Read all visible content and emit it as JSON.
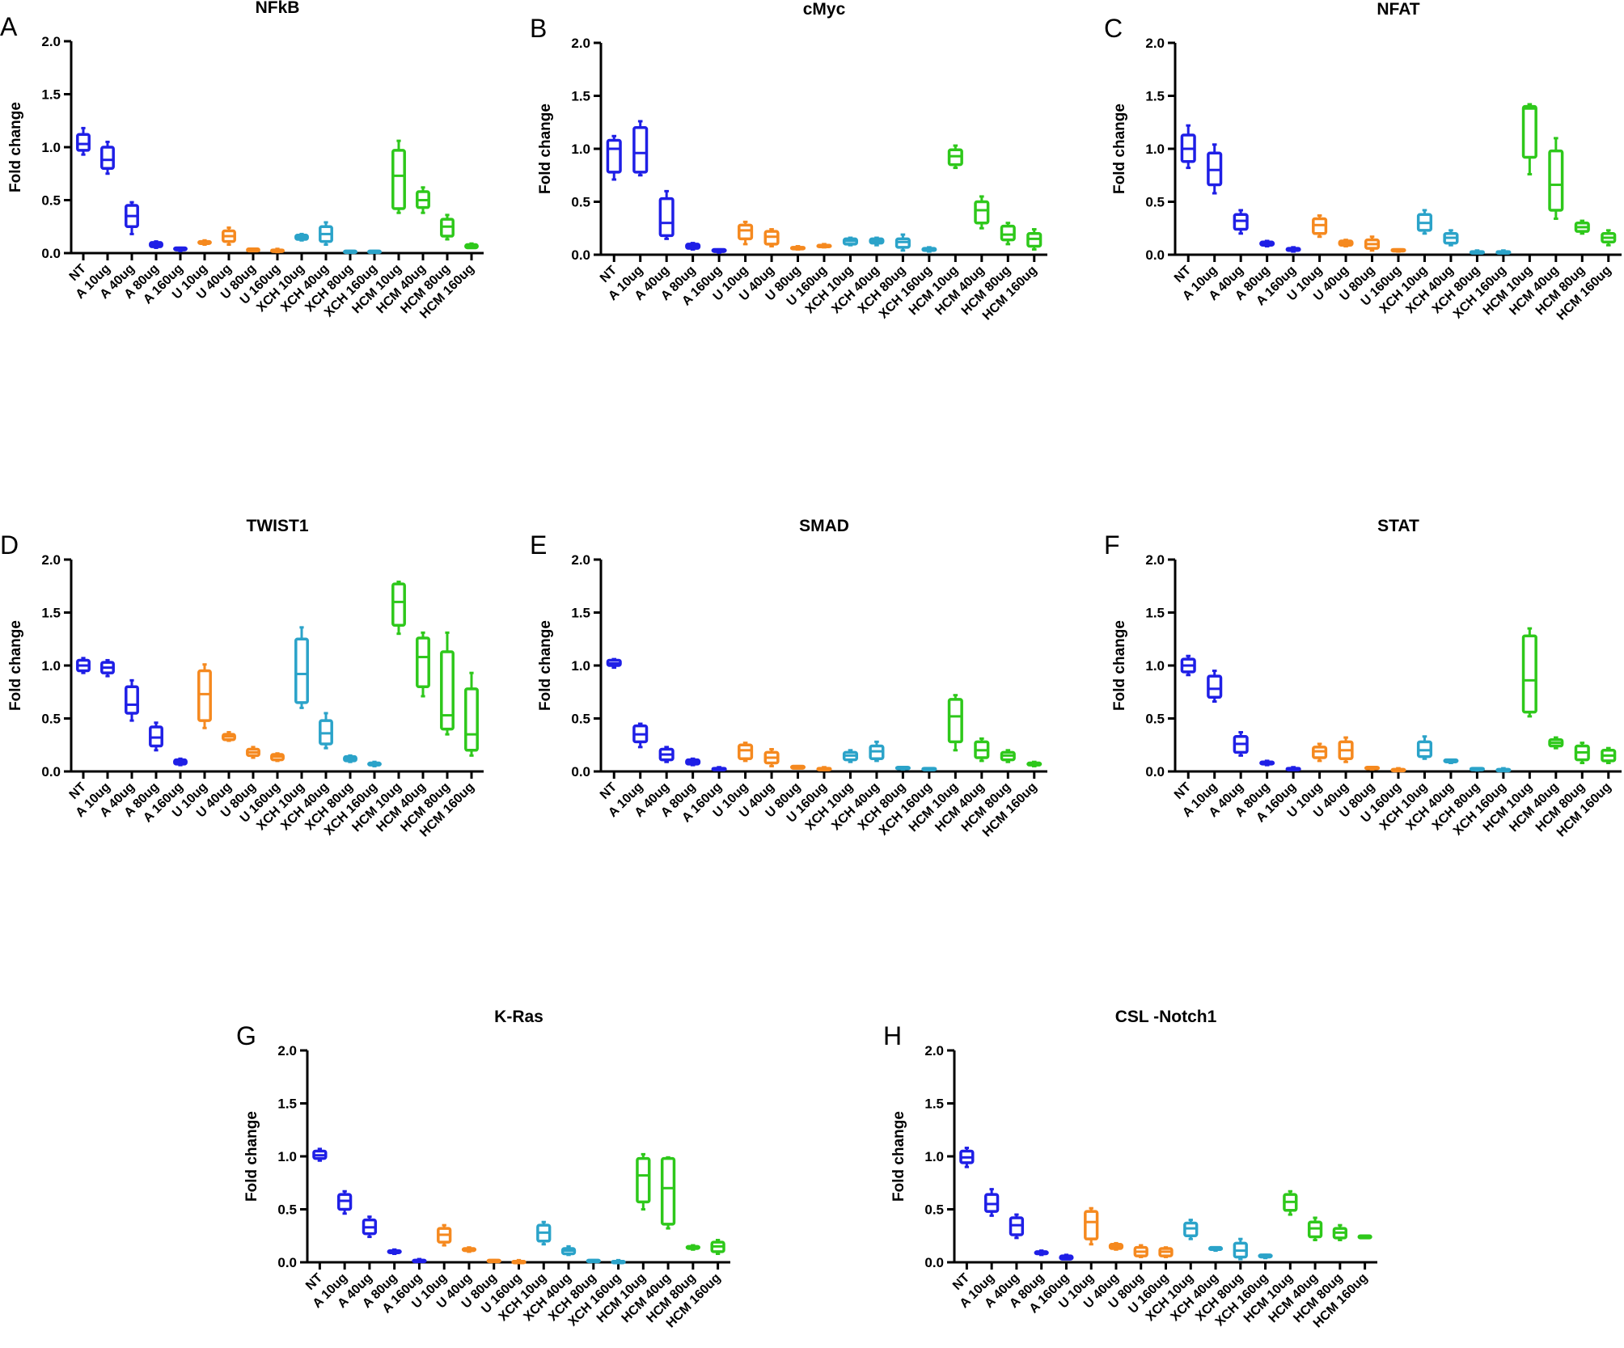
{
  "colors": {
    "A": "#1f1fe6",
    "U": "#f5891f",
    "XCH": "#2ba3c9",
    "HCM": "#2ec81b",
    "NT": "#1f1fe6"
  },
  "categories": [
    "NT",
    "A 10ug",
    "A 40ug",
    "A 80ug",
    "A 160ug",
    "U 10ug",
    "U 40ug",
    "U 80ug",
    "U 160ug",
    "XCH 10ug",
    "XCH 40ug",
    "XCH 80ug",
    "XCH 160ug",
    "HCM 10ug",
    "HCM 40ug",
    "HCM 80ug",
    "HCM 160ug"
  ],
  "groups": [
    "NT",
    "A",
    "A",
    "A",
    "A",
    "U",
    "U",
    "U",
    "U",
    "XCH",
    "XCH",
    "XCH",
    "XCH",
    "HCM",
    "HCM",
    "HCM",
    "HCM"
  ],
  "chart_data": [
    {
      "panel": "A",
      "type": "box",
      "title": "NFkB",
      "ylabel": "Fold change",
      "ylim": [
        0,
        2.0
      ],
      "yticks": [
        "0.0",
        "0.5",
        "1.0",
        "1.5",
        "2.0"
      ],
      "boxes": [
        [
          0.93,
          0.97,
          1.03,
          1.12,
          1.18
        ],
        [
          0.75,
          0.8,
          0.88,
          1.0,
          1.05
        ],
        [
          0.18,
          0.25,
          0.35,
          0.45,
          0.48
        ],
        [
          0.05,
          0.06,
          0.08,
          0.1,
          0.11
        ],
        [
          0.02,
          0.03,
          0.04,
          0.05,
          0.05
        ],
        [
          0.08,
          0.09,
          0.1,
          0.11,
          0.12
        ],
        [
          0.08,
          0.11,
          0.16,
          0.21,
          0.24
        ],
        [
          0.02,
          0.02,
          0.03,
          0.04,
          0.04
        ],
        [
          0.01,
          0.02,
          0.03,
          0.03,
          0.04
        ],
        [
          0.12,
          0.13,
          0.15,
          0.17,
          0.18
        ],
        [
          0.08,
          0.11,
          0.18,
          0.25,
          0.29
        ],
        [
          0.01,
          0.01,
          0.02,
          0.02,
          0.02
        ],
        [
          0.01,
          0.01,
          0.02,
          0.02,
          0.02
        ],
        [
          0.38,
          0.42,
          0.73,
          0.97,
          1.06
        ],
        [
          0.38,
          0.43,
          0.5,
          0.58,
          0.62
        ],
        [
          0.13,
          0.16,
          0.25,
          0.32,
          0.36
        ],
        [
          0.05,
          0.05,
          0.07,
          0.08,
          0.09
        ]
      ]
    },
    {
      "panel": "B",
      "type": "box",
      "title": "cMyc",
      "ylabel": "Fold change",
      "ylim": [
        0,
        2.0
      ],
      "yticks": [
        "0.0",
        "0.5",
        "1.0",
        "1.5",
        "2.0"
      ],
      "boxes": [
        [
          0.71,
          0.78,
          1.0,
          1.08,
          1.12
        ],
        [
          0.75,
          0.78,
          0.96,
          1.2,
          1.26
        ],
        [
          0.15,
          0.18,
          0.3,
          0.53,
          0.6
        ],
        [
          0.05,
          0.06,
          0.08,
          0.1,
          0.11
        ],
        [
          0.02,
          0.03,
          0.04,
          0.05,
          0.05
        ],
        [
          0.1,
          0.15,
          0.23,
          0.28,
          0.31
        ],
        [
          0.08,
          0.1,
          0.17,
          0.22,
          0.24
        ],
        [
          0.05,
          0.06,
          0.07,
          0.07,
          0.08
        ],
        [
          0.07,
          0.08,
          0.09,
          0.09,
          0.1
        ],
        [
          0.09,
          0.1,
          0.13,
          0.15,
          0.16
        ],
        [
          0.09,
          0.11,
          0.13,
          0.15,
          0.16
        ],
        [
          0.04,
          0.07,
          0.12,
          0.15,
          0.19
        ],
        [
          0.03,
          0.04,
          0.05,
          0.06,
          0.07
        ],
        [
          0.82,
          0.85,
          0.93,
          0.99,
          1.03
        ],
        [
          0.25,
          0.3,
          0.42,
          0.5,
          0.55
        ],
        [
          0.1,
          0.14,
          0.19,
          0.27,
          0.3
        ],
        [
          0.05,
          0.08,
          0.15,
          0.2,
          0.24
        ]
      ]
    },
    {
      "panel": "C",
      "type": "box",
      "title": "NFAT",
      "ylabel": "Fold change",
      "ylim": [
        0,
        2.0
      ],
      "yticks": [
        "0.0",
        "0.5",
        "1.0",
        "1.5",
        "2.0"
      ],
      "boxes": [
        [
          0.82,
          0.88,
          1.0,
          1.13,
          1.22
        ],
        [
          0.58,
          0.66,
          0.8,
          0.96,
          1.04
        ],
        [
          0.2,
          0.24,
          0.32,
          0.38,
          0.42
        ],
        [
          0.08,
          0.09,
          0.11,
          0.12,
          0.13
        ],
        [
          0.03,
          0.04,
          0.05,
          0.06,
          0.07
        ],
        [
          0.17,
          0.2,
          0.28,
          0.34,
          0.37
        ],
        [
          0.08,
          0.09,
          0.11,
          0.13,
          0.14
        ],
        [
          0.04,
          0.06,
          0.1,
          0.14,
          0.17
        ],
        [
          0.03,
          0.04,
          0.04,
          0.05,
          0.05
        ],
        [
          0.2,
          0.23,
          0.3,
          0.38,
          0.42
        ],
        [
          0.09,
          0.11,
          0.16,
          0.2,
          0.23
        ],
        [
          0.02,
          0.02,
          0.03,
          0.03,
          0.04
        ],
        [
          0.02,
          0.02,
          0.03,
          0.03,
          0.04
        ],
        [
          0.76,
          0.92,
          1.38,
          1.4,
          1.42
        ],
        [
          0.34,
          0.42,
          0.66,
          0.98,
          1.1
        ],
        [
          0.2,
          0.22,
          0.26,
          0.3,
          0.32
        ],
        [
          0.09,
          0.12,
          0.16,
          0.2,
          0.23
        ]
      ]
    },
    {
      "panel": "D",
      "type": "box",
      "title": "TWIST1",
      "ylabel": "Fold change",
      "ylim": [
        0,
        2.0
      ],
      "yticks": [
        "0.0",
        "0.5",
        "1.0",
        "1.5",
        "2.0"
      ],
      "boxes": [
        [
          0.93,
          0.95,
          1.0,
          1.05,
          1.07
        ],
        [
          0.9,
          0.93,
          0.98,
          1.03,
          1.05
        ],
        [
          0.48,
          0.55,
          0.63,
          0.8,
          0.86
        ],
        [
          0.2,
          0.24,
          0.32,
          0.42,
          0.46
        ],
        [
          0.06,
          0.07,
          0.09,
          0.11,
          0.12
        ],
        [
          0.41,
          0.48,
          0.73,
          0.95,
          1.01
        ],
        [
          0.29,
          0.3,
          0.33,
          0.35,
          0.37
        ],
        [
          0.13,
          0.15,
          0.18,
          0.21,
          0.23
        ],
        [
          0.1,
          0.11,
          0.14,
          0.16,
          0.17
        ],
        [
          0.6,
          0.65,
          0.92,
          1.25,
          1.36
        ],
        [
          0.22,
          0.26,
          0.36,
          0.48,
          0.55
        ],
        [
          0.09,
          0.1,
          0.12,
          0.14,
          0.15
        ],
        [
          0.05,
          0.06,
          0.07,
          0.08,
          0.09
        ],
        [
          1.3,
          1.38,
          1.6,
          1.77,
          1.79
        ],
        [
          0.71,
          0.8,
          1.08,
          1.26,
          1.31
        ],
        [
          0.35,
          0.4,
          0.53,
          1.13,
          1.31
        ],
        [
          0.15,
          0.2,
          0.35,
          0.78,
          0.93
        ]
      ]
    },
    {
      "panel": "E",
      "type": "box",
      "title": "SMAD",
      "ylabel": "Fold change",
      "ylim": [
        0,
        2.0
      ],
      "yticks": [
        "0.0",
        "0.5",
        "1.0",
        "1.5",
        "2.0"
      ],
      "boxes": [
        [
          0.98,
          1.0,
          1.02,
          1.05,
          1.06
        ],
        [
          0.23,
          0.28,
          0.35,
          0.43,
          0.45
        ],
        [
          0.09,
          0.11,
          0.16,
          0.21,
          0.23
        ],
        [
          0.06,
          0.07,
          0.09,
          0.11,
          0.12
        ],
        [
          0.02,
          0.02,
          0.03,
          0.03,
          0.04
        ],
        [
          0.1,
          0.12,
          0.2,
          0.25,
          0.27
        ],
        [
          0.05,
          0.08,
          0.13,
          0.18,
          0.21
        ],
        [
          0.03,
          0.03,
          0.04,
          0.05,
          0.05
        ],
        [
          0.02,
          0.02,
          0.03,
          0.03,
          0.04
        ],
        [
          0.09,
          0.11,
          0.15,
          0.18,
          0.2
        ],
        [
          0.1,
          0.12,
          0.19,
          0.24,
          0.28
        ],
        [
          0.02,
          0.03,
          0.03,
          0.04,
          0.04
        ],
        [
          0.02,
          0.02,
          0.02,
          0.03,
          0.03
        ],
        [
          0.2,
          0.28,
          0.52,
          0.68,
          0.72
        ],
        [
          0.1,
          0.13,
          0.2,
          0.28,
          0.31
        ],
        [
          0.09,
          0.11,
          0.15,
          0.18,
          0.2
        ],
        [
          0.05,
          0.06,
          0.07,
          0.08,
          0.09
        ]
      ]
    },
    {
      "panel": "F",
      "type": "box",
      "title": "STAT",
      "ylabel": "Fold change",
      "ylim": [
        0,
        2.0
      ],
      "yticks": [
        "0.0",
        "0.5",
        "1.0",
        "1.5",
        "2.0"
      ],
      "boxes": [
        [
          0.91,
          0.94,
          1.0,
          1.06,
          1.09
        ],
        [
          0.66,
          0.7,
          0.78,
          0.9,
          0.95
        ],
        [
          0.15,
          0.18,
          0.26,
          0.33,
          0.37
        ],
        [
          0.06,
          0.07,
          0.08,
          0.09,
          0.1
        ],
        [
          0.02,
          0.02,
          0.03,
          0.03,
          0.04
        ],
        [
          0.1,
          0.13,
          0.19,
          0.23,
          0.26
        ],
        [
          0.09,
          0.12,
          0.2,
          0.28,
          0.32
        ],
        [
          0.02,
          0.03,
          0.03,
          0.04,
          0.04
        ],
        [
          0.01,
          0.02,
          0.02,
          0.02,
          0.03
        ],
        [
          0.12,
          0.14,
          0.2,
          0.28,
          0.33
        ],
        [
          0.08,
          0.09,
          0.1,
          0.11,
          0.11
        ],
        [
          0.01,
          0.02,
          0.02,
          0.03,
          0.03
        ],
        [
          0.01,
          0.02,
          0.02,
          0.02,
          0.03
        ],
        [
          0.52,
          0.56,
          0.86,
          1.28,
          1.35
        ],
        [
          0.22,
          0.24,
          0.27,
          0.3,
          0.32
        ],
        [
          0.08,
          0.11,
          0.18,
          0.24,
          0.27
        ],
        [
          0.08,
          0.1,
          0.15,
          0.2,
          0.22
        ]
      ]
    },
    {
      "panel": "G",
      "type": "box",
      "title": "K-Ras",
      "ylabel": "Fold change",
      "ylim": [
        0,
        2.0
      ],
      "yticks": [
        "0.0",
        "0.5",
        "1.0",
        "1.5",
        "2.0"
      ],
      "boxes": [
        [
          0.96,
          0.98,
          1.01,
          1.05,
          1.07
        ],
        [
          0.46,
          0.5,
          0.58,
          0.64,
          0.67
        ],
        [
          0.24,
          0.27,
          0.33,
          0.4,
          0.43
        ],
        [
          0.08,
          0.09,
          0.1,
          0.11,
          0.12
        ],
        [
          0.01,
          0.01,
          0.02,
          0.02,
          0.03
        ],
        [
          0.16,
          0.19,
          0.26,
          0.32,
          0.35
        ],
        [
          0.1,
          0.11,
          0.12,
          0.13,
          0.14
        ],
        [
          0.01,
          0.01,
          0.02,
          0.02,
          0.02
        ],
        [
          0.01,
          0.01,
          0.01,
          0.01,
          0.02
        ],
        [
          0.17,
          0.2,
          0.28,
          0.35,
          0.38
        ],
        [
          0.07,
          0.08,
          0.11,
          0.13,
          0.15
        ],
        [
          0.01,
          0.01,
          0.02,
          0.02,
          0.02
        ],
        [
          0.01,
          0.01,
          0.01,
          0.01,
          0.02
        ],
        [
          0.5,
          0.57,
          0.82,
          0.98,
          1.02
        ],
        [
          0.32,
          0.36,
          0.7,
          0.98,
          0.99
        ],
        [
          0.12,
          0.13,
          0.14,
          0.15,
          0.16
        ],
        [
          0.08,
          0.1,
          0.15,
          0.19,
          0.21
        ]
      ]
    },
    {
      "panel": "H",
      "type": "box",
      "title": "CSL -Notch1",
      "ylabel": "Fold change",
      "ylim": [
        0,
        2.0
      ],
      "yticks": [
        "0.0",
        "0.5",
        "1.0",
        "1.5",
        "2.0"
      ],
      "boxes": [
        [
          0.9,
          0.94,
          0.99,
          1.05,
          1.08
        ],
        [
          0.44,
          0.48,
          0.55,
          0.64,
          0.69
        ],
        [
          0.23,
          0.26,
          0.35,
          0.42,
          0.45
        ],
        [
          0.07,
          0.08,
          0.09,
          0.1,
          0.11
        ],
        [
          0.03,
          0.03,
          0.05,
          0.06,
          0.07
        ],
        [
          0.17,
          0.22,
          0.38,
          0.48,
          0.51
        ],
        [
          0.12,
          0.13,
          0.15,
          0.17,
          0.18
        ],
        [
          0.05,
          0.06,
          0.1,
          0.14,
          0.16
        ],
        [
          0.05,
          0.06,
          0.1,
          0.13,
          0.14
        ],
        [
          0.22,
          0.25,
          0.32,
          0.37,
          0.4
        ],
        [
          0.11,
          0.12,
          0.13,
          0.14,
          0.14
        ],
        [
          0.03,
          0.05,
          0.11,
          0.18,
          0.22
        ],
        [
          0.04,
          0.05,
          0.06,
          0.07,
          0.07
        ],
        [
          0.45,
          0.49,
          0.57,
          0.64,
          0.67
        ],
        [
          0.21,
          0.24,
          0.32,
          0.38,
          0.42
        ],
        [
          0.21,
          0.23,
          0.28,
          0.32,
          0.35
        ],
        [
          0.23,
          0.23,
          0.24,
          0.25,
          0.25
        ]
      ]
    }
  ]
}
